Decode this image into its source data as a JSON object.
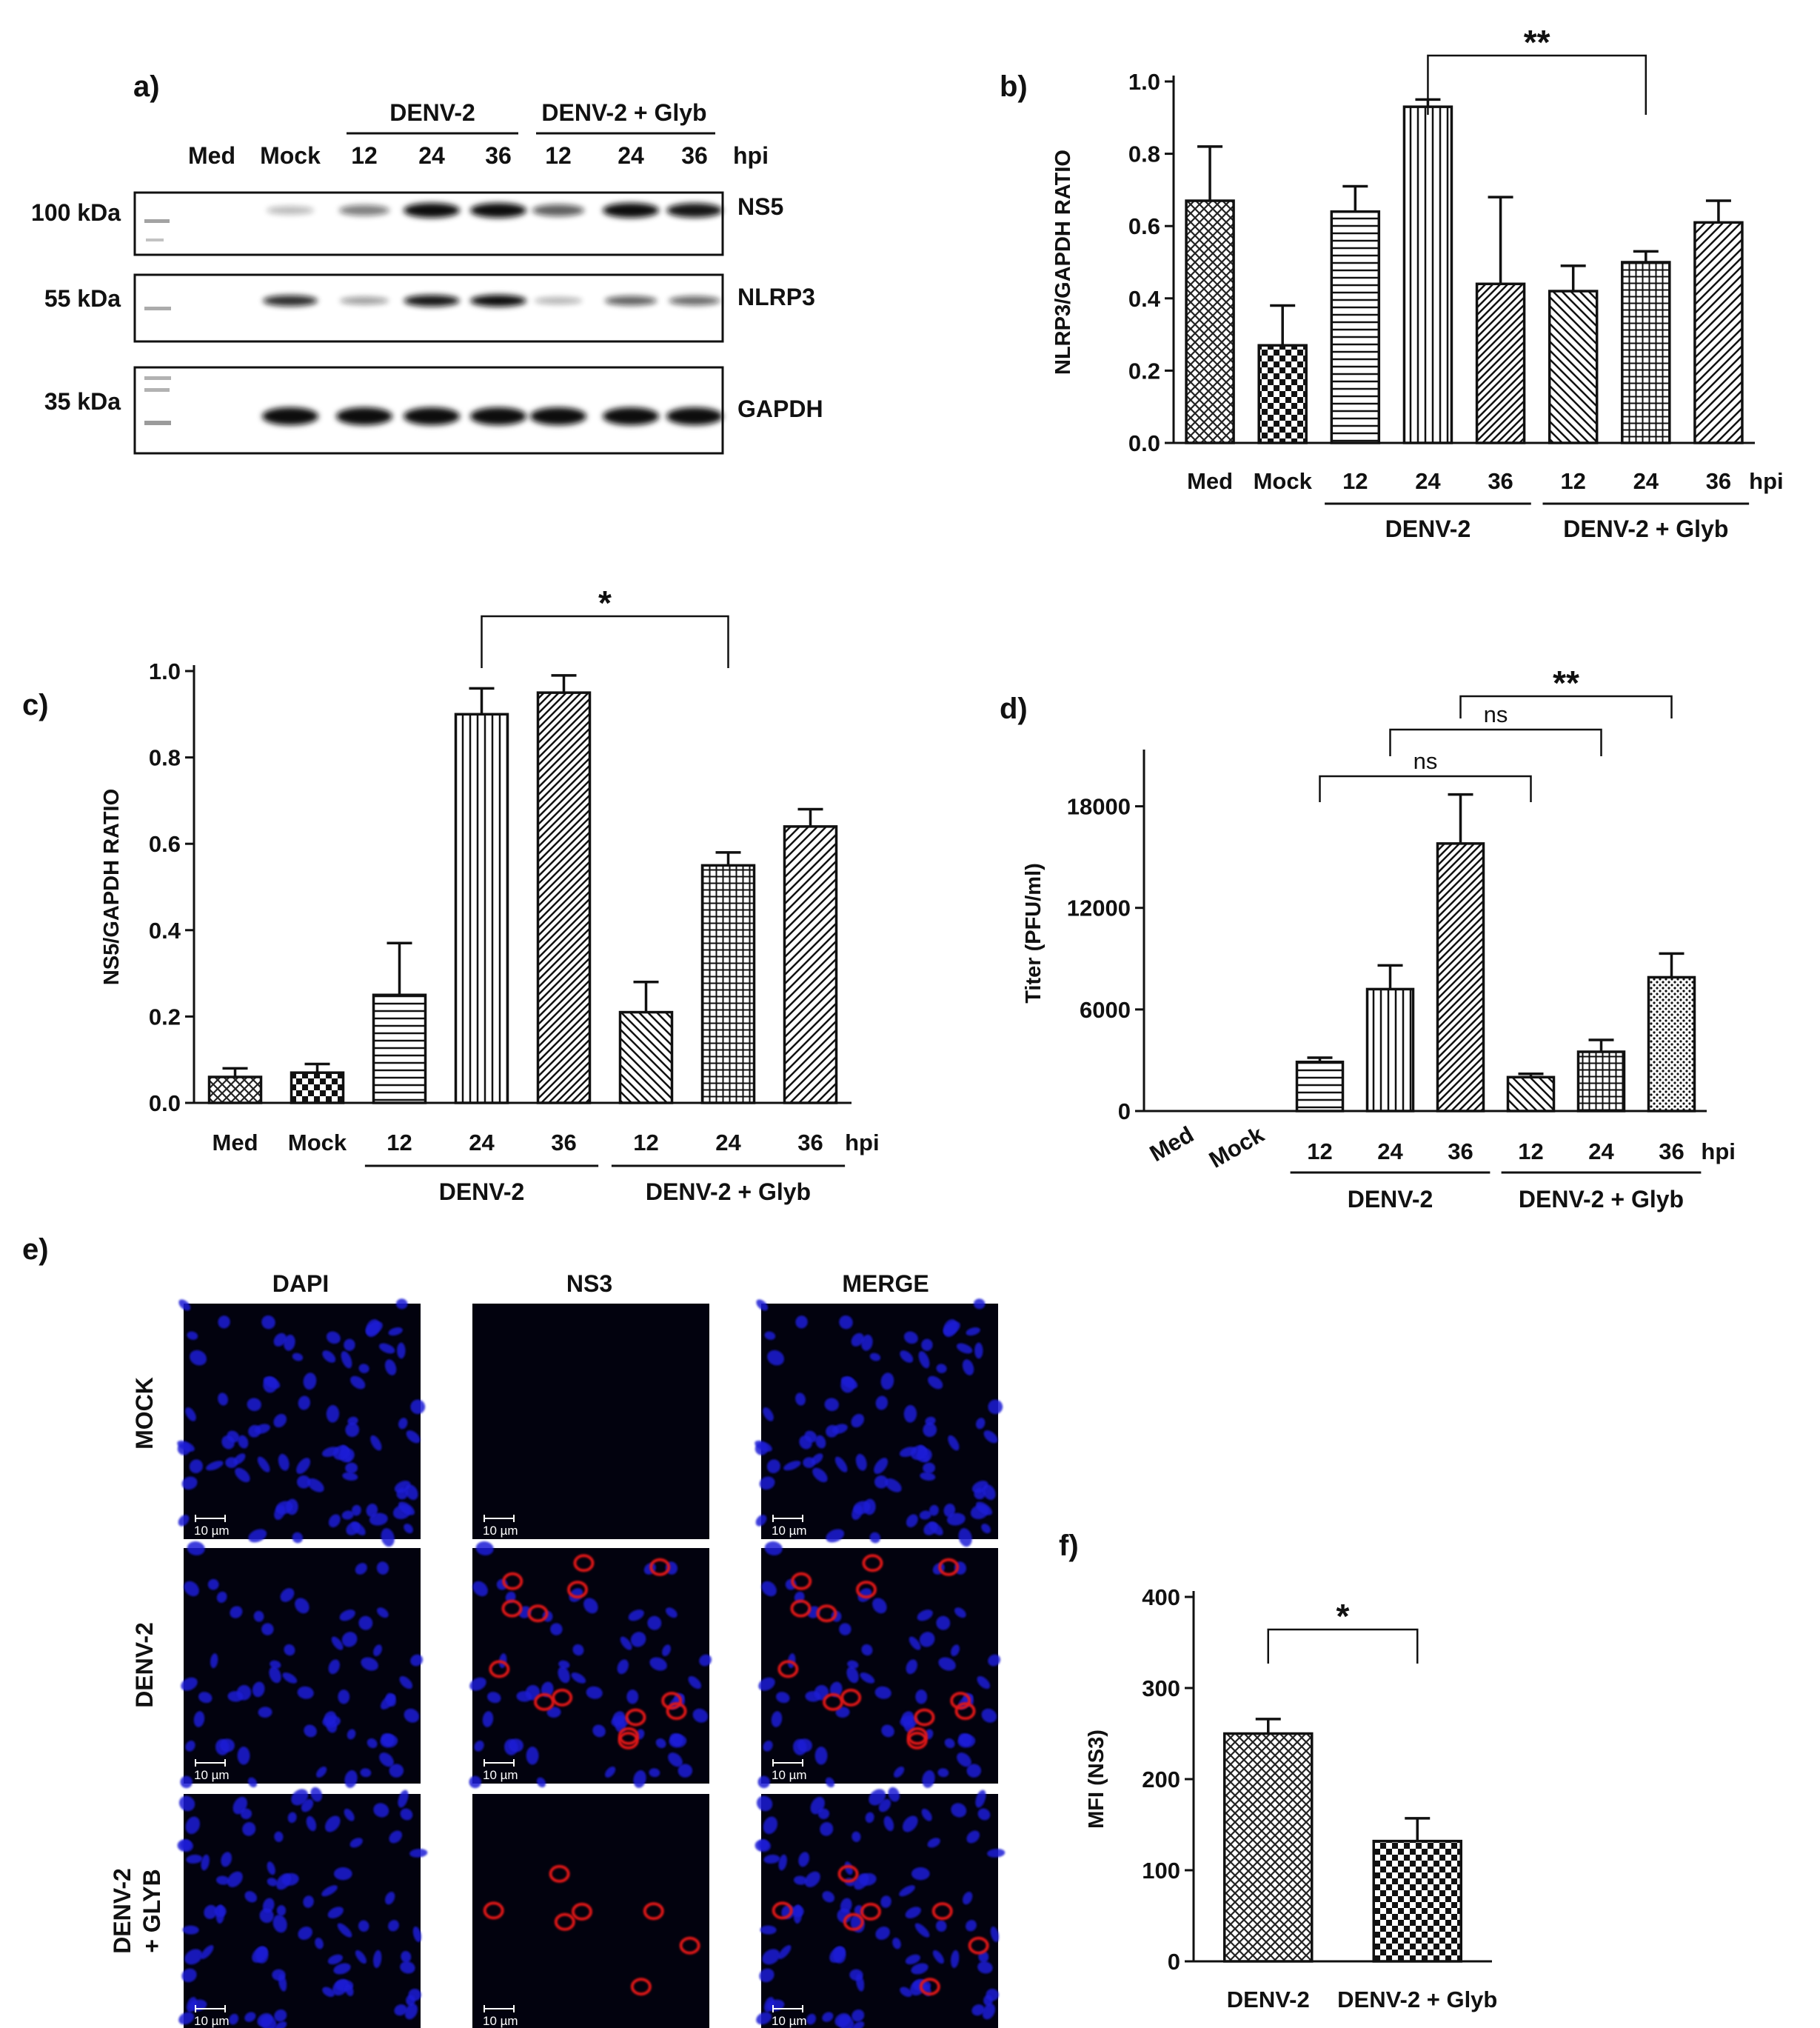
{
  "panel_a": {
    "letter": "a)",
    "group_labels": [
      "DENV-2",
      "DENV-2 + Glyb"
    ],
    "lanes": [
      "Med",
      "Mock",
      "12",
      "24",
      "36",
      "12",
      "24",
      "36"
    ],
    "hpi_label": "hpi",
    "blots": [
      {
        "marker": "100 kDa",
        "protein": "NS5",
        "band_intensity": [
          0.0,
          0.15,
          0.45,
          1.0,
          1.0,
          0.6,
          1.0,
          0.95
        ]
      },
      {
        "marker": "55 kDa",
        "protein": "NLRP3",
        "band_intensity": [
          0.0,
          0.85,
          0.3,
          0.95,
          1.0,
          0.2,
          0.6,
          0.55
        ]
      },
      {
        "marker": "35 kDa",
        "protein": "GAPDH",
        "band_intensity": [
          0.0,
          1.0,
          1.0,
          1.0,
          1.0,
          1.0,
          1.0,
          1.0
        ]
      }
    ]
  },
  "panel_e": {
    "letter": "e)",
    "columns": [
      "DAPI",
      "NS3",
      "MERGE"
    ],
    "rows": [
      "MOCK",
      "DENV-2",
      "DENV-2\n+ GLYB"
    ],
    "scale_bar": "10 µm"
  },
  "chart_data": [
    {
      "id": "b",
      "letter": "b)",
      "type": "bar",
      "categories": [
        "Med",
        "Mock",
        "12",
        "24",
        "36",
        "12",
        "24",
        "36"
      ],
      "values": [
        0.67,
        0.27,
        0.64,
        0.93,
        0.44,
        0.42,
        0.5,
        0.61
      ],
      "errors": [
        0.15,
        0.11,
        0.07,
        0.02,
        0.24,
        0.07,
        0.03,
        0.06
      ],
      "patterns": [
        "diagcross",
        "checker",
        "hlines",
        "vlines",
        "diagdense",
        "diagback",
        "grid",
        "diag"
      ],
      "ylabel": "NLRP3/GAPDH RATIO",
      "ylim": [
        0,
        1.0
      ],
      "yticks": [
        "0.0",
        "0.2",
        "0.4",
        "0.6",
        "0.8",
        "1.0"
      ],
      "hpi_label": "hpi",
      "groups": [
        {
          "label": "DENV-2",
          "start": 2,
          "end": 4
        },
        {
          "label": "DENV-2 + Glyb",
          "start": 5,
          "end": 7
        }
      ],
      "significance": [
        {
          "from": 3,
          "to": 6,
          "label": "**"
        }
      ]
    },
    {
      "id": "c",
      "letter": "c)",
      "type": "bar",
      "categories": [
        "Med",
        "Mock",
        "12",
        "24",
        "36",
        "12",
        "24",
        "36"
      ],
      "values": [
        0.06,
        0.07,
        0.25,
        0.9,
        0.95,
        0.21,
        0.55,
        0.64
      ],
      "errors": [
        0.02,
        0.02,
        0.12,
        0.06,
        0.04,
        0.07,
        0.03,
        0.04
      ],
      "patterns": [
        "diagcross",
        "checker",
        "hlines",
        "vlines",
        "diagdense",
        "diagback",
        "grid",
        "diag"
      ],
      "ylabel": "NS5/GAPDH RATIO",
      "ylim": [
        0,
        1.0
      ],
      "yticks": [
        "0.0",
        "0.2",
        "0.4",
        "0.6",
        "0.8",
        "1.0"
      ],
      "hpi_label": "hpi",
      "groups": [
        {
          "label": "DENV-2",
          "start": 2,
          "end": 4
        },
        {
          "label": "DENV-2 + Glyb",
          "start": 5,
          "end": 7
        }
      ],
      "significance": [
        {
          "from": 3,
          "to": 6,
          "label": "*"
        }
      ]
    },
    {
      "id": "d",
      "letter": "d)",
      "type": "bar",
      "categories": [
        "Med",
        "Mock",
        "12",
        "24",
        "36",
        "12",
        "24",
        "36"
      ],
      "values": [
        0,
        0,
        2900,
        7200,
        15800,
        2000,
        3500,
        7900
      ],
      "errors": [
        0,
        0,
        250,
        1400,
        2900,
        200,
        700,
        1400
      ],
      "patterns": [
        "none",
        "none",
        "hlines",
        "vlines",
        "diagdense",
        "diagback",
        "grid",
        "dots"
      ],
      "ylabel": "Titer (PFU/ml)",
      "ylim": [
        0,
        21000
      ],
      "yticks": [
        "0",
        "6000",
        "12000",
        "18000"
      ],
      "ytick_values": [
        0,
        6000,
        12000,
        18000
      ],
      "hpi_label": "hpi",
      "rotated_categories": [
        0,
        1
      ],
      "groups": [
        {
          "label": "DENV-2",
          "start": 2,
          "end": 4
        },
        {
          "label": "DENV-2 + Glyb",
          "start": 5,
          "end": 7
        }
      ],
      "significance": [
        {
          "from": 2,
          "to": 5,
          "label": "ns"
        },
        {
          "from": 3,
          "to": 6,
          "label": "ns"
        },
        {
          "from": 4,
          "to": 7,
          "label": "**"
        }
      ]
    },
    {
      "id": "f",
      "letter": "f)",
      "type": "bar",
      "categories": [
        "DENV-2",
        "DENV-2 + Glyb"
      ],
      "values": [
        250,
        132
      ],
      "errors": [
        16,
        25
      ],
      "patterns": [
        "diagcross",
        "checker"
      ],
      "ylabel": "MFI (NS3)",
      "ylim": [
        0,
        400
      ],
      "yticks": [
        "0",
        "100",
        "200",
        "300",
        "400"
      ],
      "significance": [
        {
          "from": 0,
          "to": 1,
          "label": "*"
        }
      ]
    }
  ]
}
